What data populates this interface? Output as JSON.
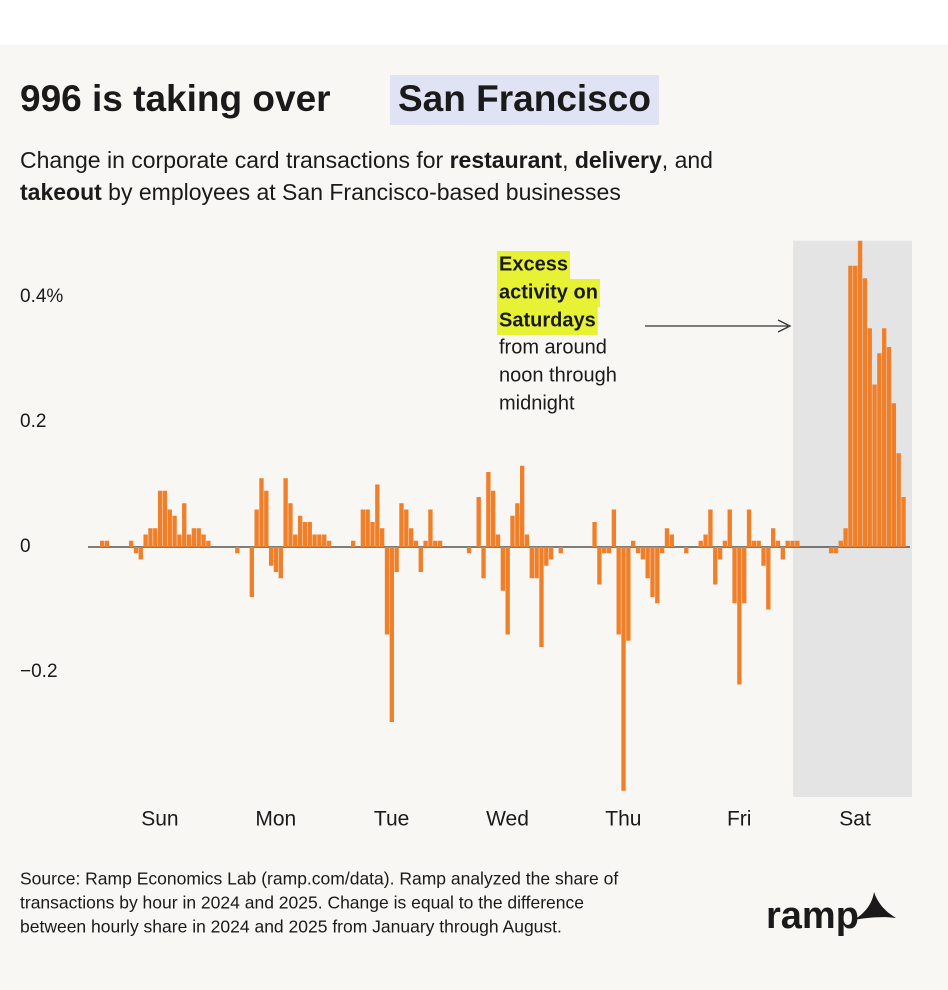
{
  "chart_data": {
    "type": "bar",
    "title": "996 is taking over",
    "title_highlight": "San Francisco",
    "subtitle_lines": [
      [
        {
          "text": "Change in corporate card transactions for "
        },
        {
          "text": "restaurant",
          "bold": true
        },
        {
          "text": ", "
        },
        {
          "text": "delivery",
          "bold": true
        },
        {
          "text": ", and"
        }
      ],
      [
        {
          "text": "takeout",
          "bold": true
        },
        {
          "text": " by employees at San Francisco-based businesses"
        }
      ]
    ],
    "categories": [
      "Sun",
      "Mon",
      "Tue",
      "Wed",
      "Thu",
      "Fri",
      "Sat"
    ],
    "values": [
      [
        0.01,
        0.01,
        0,
        0,
        0,
        0,
        0.01,
        -0.01,
        -0.02,
        0.02,
        0.03,
        0.03,
        0.09,
        0.09,
        0.06,
        0.05,
        0.02,
        0.07,
        0.02,
        0.03,
        0.03,
        0.02,
        0.01,
        0
      ],
      [
        0,
        0,
        0,
        0,
        -0.01,
        0,
        0,
        -0.08,
        0.06,
        0.11,
        0.09,
        -0.03,
        -0.04,
        -0.05,
        0.11,
        0.07,
        0.02,
        0.05,
        0.04,
        0.04,
        0.02,
        0.02,
        0.02,
        0.01
      ],
      [
        0,
        0,
        0,
        0,
        0.01,
        0,
        0.06,
        0.06,
        0.04,
        0.1,
        0.03,
        -0.14,
        -0.28,
        -0.04,
        0.07,
        0.06,
        0.03,
        0.01,
        -0.04,
        0.01,
        0.06,
        0.01,
        0.01,
        0
      ],
      [
        0,
        0,
        0,
        0,
        -0.01,
        0,
        0.08,
        -0.05,
        0.12,
        0.09,
        0.02,
        -0.07,
        -0.14,
        0.05,
        0.07,
        0.13,
        0.02,
        -0.05,
        -0.05,
        -0.16,
        -0.03,
        -0.02,
        0,
        -0.01
      ],
      [
        0,
        0,
        0,
        0,
        0,
        0,
        0.04,
        -0.06,
        -0.01,
        -0.01,
        0.06,
        -0.14,
        -0.39,
        -0.15,
        0.01,
        -0.01,
        -0.02,
        -0.05,
        -0.08,
        -0.09,
        -0.01,
        0.03,
        0.02,
        0
      ],
      [
        0,
        -0.01,
        0,
        0,
        0.01,
        0.02,
        0.06,
        -0.06,
        -0.02,
        0.01,
        0.06,
        -0.09,
        -0.22,
        -0.09,
        0.06,
        0.01,
        0.01,
        -0.03,
        -0.1,
        0.03,
        0.01,
        -0.02,
        0.01,
        0.01
      ],
      [
        0.01,
        0,
        0,
        0,
        0,
        0,
        0,
        -0.01,
        -0.01,
        0.01,
        0.03,
        0.45,
        0.45,
        0.49,
        0.43,
        0.35,
        0.26,
        0.31,
        0.35,
        0.32,
        0.23,
        0.15,
        0.08,
        0
      ]
    ],
    "color": "#f07f2a",
    "highlight_category": 6,
    "highlight_color": "#e4e4e4",
    "ylim": [
      -0.4,
      0.49
    ],
    "yticks": [
      {
        "value": 0.4,
        "label": "0.4%"
      },
      0.2,
      0,
      {
        "value": -0.2,
        "label": "−0.2"
      }
    ],
    "grid": false,
    "annotation": {
      "highlight_lines": [
        "Excess",
        "activity on",
        "Saturdays"
      ],
      "lines": [
        "from around",
        "noon through",
        "midnight"
      ]
    },
    "source_lines": [
      "Source: Ramp Economics Lab (ramp.com/data). Ramp analyzed the share of",
      "transactions by hour in 2024 and 2025. Change is equal to the difference",
      "between hourly share in 2024 and 2025 from January through August."
    ],
    "logo": "ramp"
  }
}
